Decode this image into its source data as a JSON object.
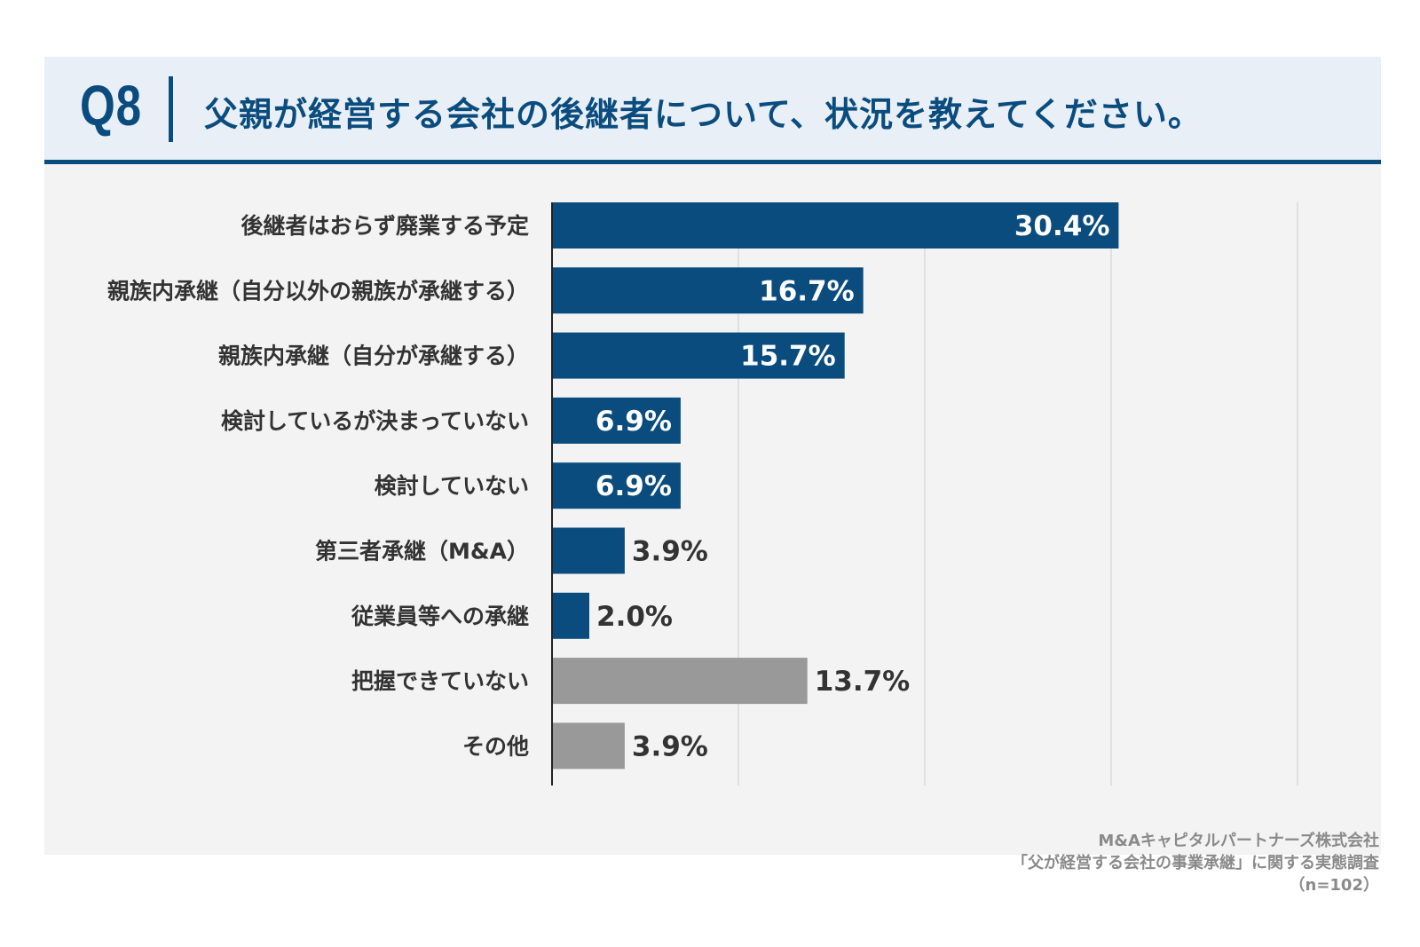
{
  "header": {
    "question_number": "Q8",
    "question_text": "父親が経営する会社の後継者について、状況を教えてください。"
  },
  "chart_data": {
    "type": "bar",
    "orientation": "horizontal",
    "title": "父親が経営する会社の後継者について、状況を教えてください。",
    "categories": [
      "後継者はおらず廃業する予定",
      "親族内承継（自分以外の親族が承継する）",
      "親族内承継（自分が承継する）",
      "検討しているが決まっていない",
      "検討していない",
      "第三者承継（M&A）",
      "従業員等への承継",
      "把握できていない",
      "その他"
    ],
    "values": [
      30.4,
      16.7,
      15.7,
      6.9,
      6.9,
      3.9,
      2.0,
      13.7,
      3.9
    ],
    "value_labels": [
      "30.4%",
      "16.7%",
      "15.7%",
      "6.9%",
      "6.9%",
      "3.9%",
      "2.0%",
      "13.7%",
      "3.9%"
    ],
    "bar_colors": [
      "#0b4c7e",
      "#0b4c7e",
      "#0b4c7e",
      "#0b4c7e",
      "#0b4c7e",
      "#0b4c7e",
      "#0b4c7e",
      "#999999",
      "#999999"
    ],
    "xlim": [
      0,
      40
    ],
    "gridlines": [
      10,
      20,
      30,
      40
    ],
    "unit": "%"
  },
  "source": {
    "company": "M&Aキャピタルパートナーズ株式会社",
    "survey": "「父が経営する会社の事業承継」に関する実態調査",
    "sample": "（n=102）"
  },
  "colors": {
    "primary": "#0b4c7e",
    "gray_bar": "#999999",
    "header_bg": "#e8eff6",
    "chart_bg": "#f3f3f3"
  }
}
